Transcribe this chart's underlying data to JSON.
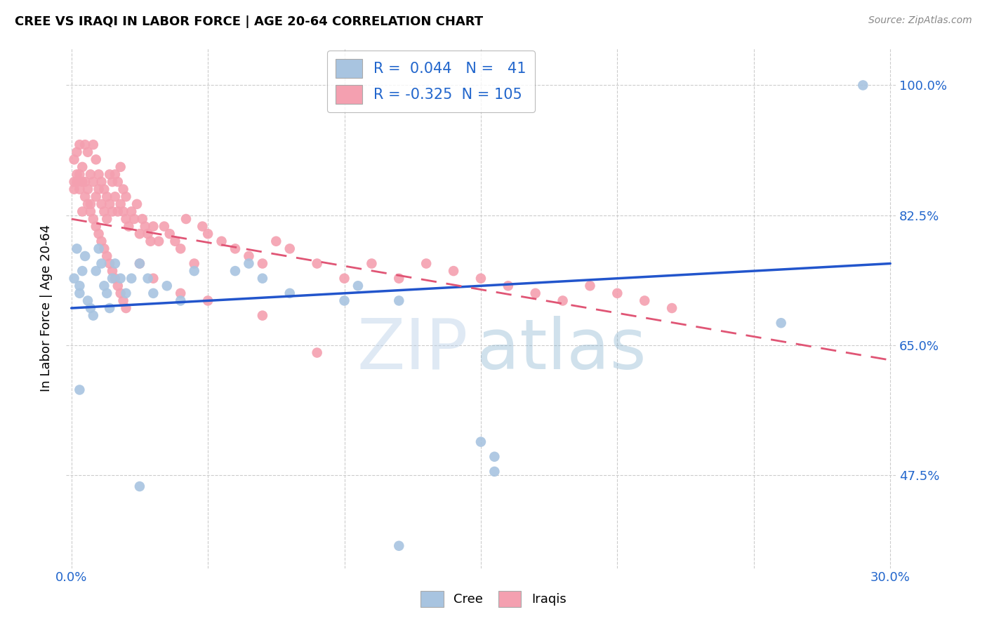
{
  "title": "CREE VS IRAQI IN LABOR FORCE | AGE 20-64 CORRELATION CHART",
  "source": "Source: ZipAtlas.com",
  "ylabel": "In Labor Force | Age 20-64",
  "xlim": [
    -0.002,
    0.302
  ],
  "ylim": [
    0.35,
    1.05
  ],
  "xtick_positions": [
    0.0,
    0.05,
    0.1,
    0.15,
    0.2,
    0.25,
    0.3
  ],
  "xtick_labels": [
    "0.0%",
    "",
    "",
    "",
    "",
    "",
    "30.0%"
  ],
  "ytick_positions": [
    0.475,
    0.65,
    0.825,
    1.0
  ],
  "ytick_labels": [
    "47.5%",
    "65.0%",
    "82.5%",
    "100.0%"
  ],
  "blue_color": "#a8c4e0",
  "pink_color": "#f4a0b0",
  "blue_line_color": "#2255cc",
  "pink_line_color": "#e05575",
  "legend_R_blue": "0.044",
  "legend_N_blue": "41",
  "legend_R_pink": "-0.325",
  "legend_N_pink": "105",
  "blue_line_x": [
    0.0,
    0.3
  ],
  "blue_line_y": [
    0.7,
    0.76
  ],
  "pink_line_x": [
    0.0,
    0.3
  ],
  "pink_line_y": [
    0.82,
    0.63
  ],
  "blue_points_x": [
    0.001,
    0.002,
    0.003,
    0.003,
    0.004,
    0.005,
    0.006,
    0.007,
    0.008,
    0.009,
    0.01,
    0.011,
    0.012,
    0.013,
    0.014,
    0.015,
    0.016,
    0.018,
    0.02,
    0.022,
    0.025,
    0.028,
    0.03,
    0.035,
    0.04,
    0.045,
    0.06,
    0.065,
    0.07,
    0.08,
    0.1,
    0.105,
    0.12,
    0.155,
    0.003,
    0.025,
    0.12,
    0.155,
    0.26,
    0.29,
    0.15
  ],
  "blue_points_y": [
    0.74,
    0.78,
    0.73,
    0.72,
    0.75,
    0.77,
    0.71,
    0.7,
    0.69,
    0.75,
    0.78,
    0.76,
    0.73,
    0.72,
    0.7,
    0.74,
    0.76,
    0.74,
    0.72,
    0.74,
    0.76,
    0.74,
    0.72,
    0.73,
    0.71,
    0.75,
    0.75,
    0.76,
    0.74,
    0.72,
    0.71,
    0.73,
    0.71,
    0.5,
    0.59,
    0.46,
    0.38,
    0.48,
    0.68,
    1.0,
    0.52
  ],
  "pink_points_x": [
    0.001,
    0.001,
    0.002,
    0.002,
    0.003,
    0.003,
    0.004,
    0.004,
    0.005,
    0.005,
    0.006,
    0.006,
    0.007,
    0.007,
    0.008,
    0.008,
    0.009,
    0.009,
    0.01,
    0.01,
    0.011,
    0.011,
    0.012,
    0.012,
    0.013,
    0.013,
    0.014,
    0.014,
    0.015,
    0.015,
    0.016,
    0.016,
    0.017,
    0.017,
    0.018,
    0.018,
    0.019,
    0.019,
    0.02,
    0.02,
    0.021,
    0.022,
    0.023,
    0.024,
    0.025,
    0.026,
    0.027,
    0.028,
    0.029,
    0.03,
    0.032,
    0.034,
    0.036,
    0.038,
    0.04,
    0.042,
    0.045,
    0.048,
    0.05,
    0.055,
    0.06,
    0.065,
    0.07,
    0.075,
    0.08,
    0.09,
    0.1,
    0.11,
    0.12,
    0.13,
    0.14,
    0.15,
    0.16,
    0.17,
    0.18,
    0.19,
    0.2,
    0.21,
    0.22,
    0.001,
    0.002,
    0.003,
    0.004,
    0.005,
    0.006,
    0.007,
    0.008,
    0.009,
    0.01,
    0.011,
    0.012,
    0.013,
    0.014,
    0.015,
    0.016,
    0.017,
    0.018,
    0.019,
    0.02,
    0.025,
    0.03,
    0.04,
    0.05,
    0.07,
    0.09
  ],
  "pink_points_y": [
    0.86,
    0.9,
    0.87,
    0.91,
    0.88,
    0.92,
    0.89,
    0.83,
    0.87,
    0.92,
    0.86,
    0.91,
    0.88,
    0.84,
    0.87,
    0.92,
    0.85,
    0.9,
    0.86,
    0.88,
    0.84,
    0.87,
    0.83,
    0.86,
    0.82,
    0.85,
    0.84,
    0.88,
    0.83,
    0.87,
    0.85,
    0.88,
    0.83,
    0.87,
    0.84,
    0.89,
    0.83,
    0.86,
    0.82,
    0.85,
    0.81,
    0.83,
    0.82,
    0.84,
    0.8,
    0.82,
    0.81,
    0.8,
    0.79,
    0.81,
    0.79,
    0.81,
    0.8,
    0.79,
    0.78,
    0.82,
    0.76,
    0.81,
    0.8,
    0.79,
    0.78,
    0.77,
    0.76,
    0.79,
    0.78,
    0.76,
    0.74,
    0.76,
    0.74,
    0.76,
    0.75,
    0.74,
    0.73,
    0.72,
    0.71,
    0.73,
    0.72,
    0.71,
    0.7,
    0.87,
    0.88,
    0.86,
    0.87,
    0.85,
    0.84,
    0.83,
    0.82,
    0.81,
    0.8,
    0.79,
    0.78,
    0.77,
    0.76,
    0.75,
    0.74,
    0.73,
    0.72,
    0.71,
    0.7,
    0.76,
    0.74,
    0.72,
    0.71,
    0.69,
    0.64
  ]
}
